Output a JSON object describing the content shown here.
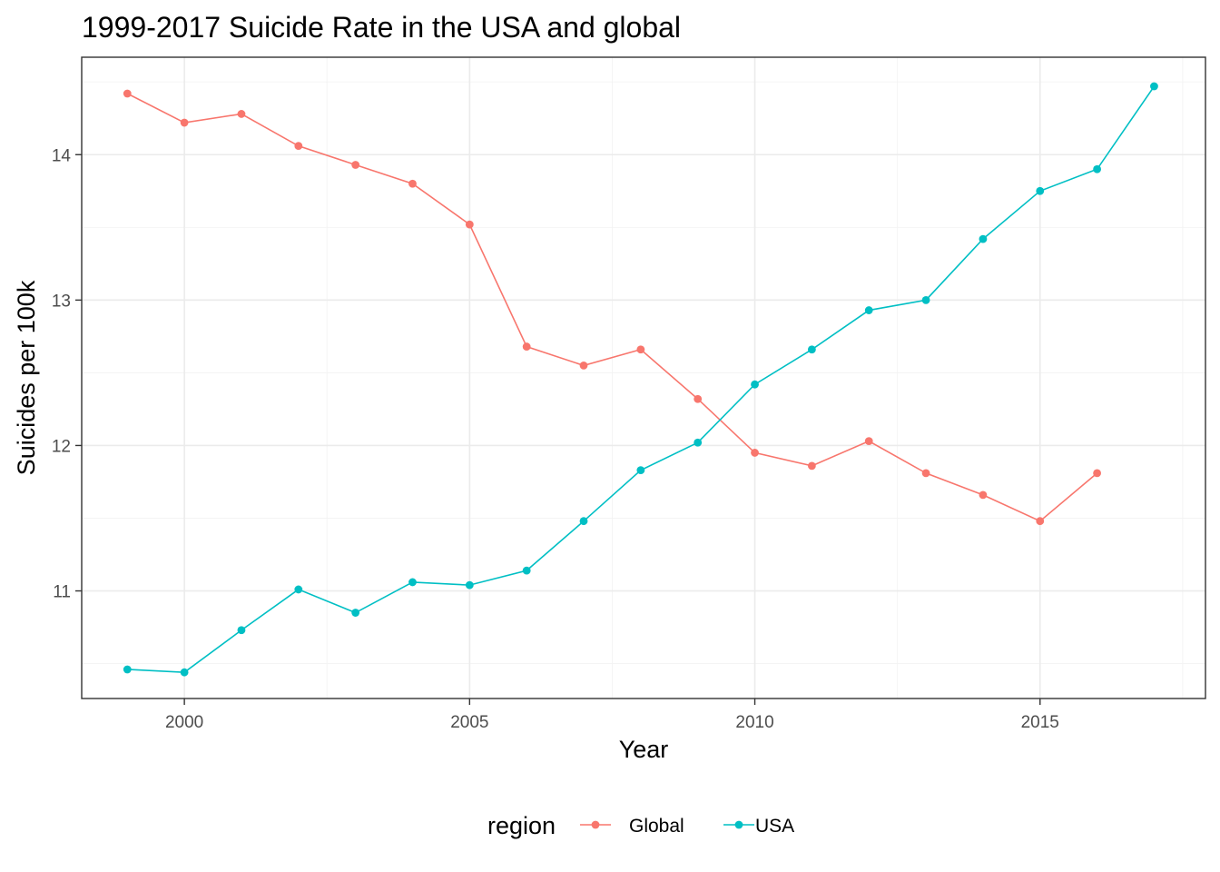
{
  "chart_data": {
    "type": "line",
    "title": "1999-2017 Suicide Rate in the USA and global",
    "xlabel": "Year",
    "ylabel": "Suicides per 100k",
    "xlim": [
      1998.2,
      2017.9
    ],
    "ylim": [
      10.26,
      14.67
    ],
    "x_ticks": [
      2000,
      2005,
      2010,
      2015
    ],
    "x_tick_labels": [
      "2000",
      "2005",
      "2010",
      "2015"
    ],
    "y_ticks": [
      11,
      12,
      13,
      14
    ],
    "y_tick_labels": [
      "11",
      "12",
      "13",
      "14"
    ],
    "grid": true,
    "legend": {
      "title": "region",
      "position": "bottom"
    },
    "series": [
      {
        "name": "Global",
        "color": "#f8766d",
        "x": [
          1999,
          2000,
          2001,
          2002,
          2003,
          2004,
          2005,
          2006,
          2007,
          2008,
          2009,
          2010,
          2011,
          2012,
          2013,
          2014,
          2015,
          2016
        ],
        "values": [
          14.42,
          14.22,
          14.28,
          14.06,
          13.93,
          13.8,
          13.52,
          12.68,
          12.55,
          12.66,
          12.32,
          11.95,
          11.86,
          12.03,
          11.81,
          11.66,
          11.48,
          11.81
        ]
      },
      {
        "name": "USA",
        "color": "#00bfc4",
        "x": [
          1999,
          2000,
          2001,
          2002,
          2003,
          2004,
          2005,
          2006,
          2007,
          2008,
          2009,
          2010,
          2011,
          2012,
          2013,
          2014,
          2015,
          2016,
          2017
        ],
        "values": [
          10.46,
          10.44,
          10.73,
          11.01,
          10.85,
          11.06,
          11.04,
          11.14,
          11.48,
          11.83,
          12.02,
          12.42,
          12.66,
          12.93,
          13.0,
          13.42,
          13.75,
          13.9,
          14.47
        ]
      }
    ]
  }
}
